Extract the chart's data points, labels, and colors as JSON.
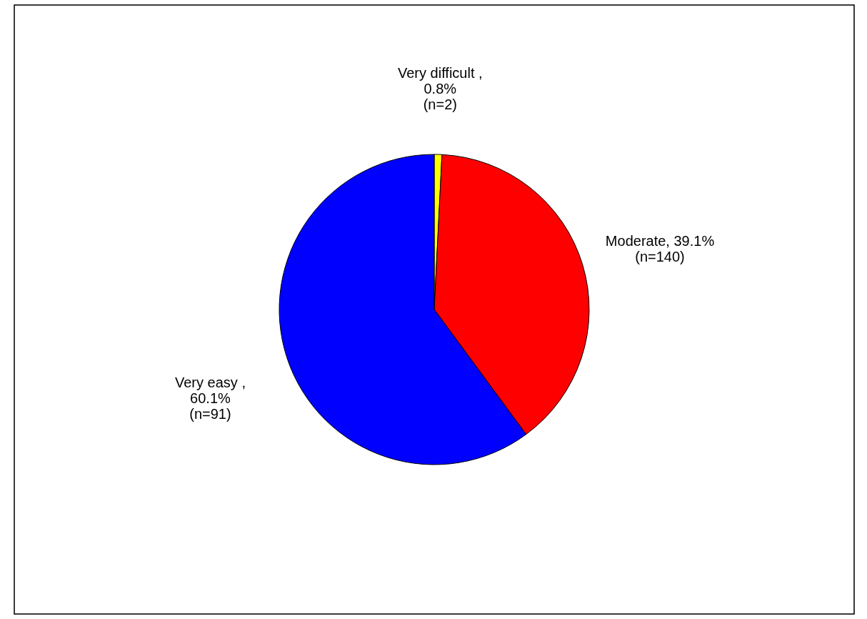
{
  "chart_data": {
    "type": "pie",
    "categories": [
      "Very difficult",
      "Moderate",
      "Very easy"
    ],
    "values": [
      0.8,
      39.1,
      60.1
    ],
    "value_labels": [
      ",\n0.8%\n(n=2)",
      "39.1%\n(n=140)",
      ",\n60.1%\n(n=91)"
    ],
    "colors": [
      "#ffff00",
      "#ff0000",
      "#0000ff"
    ],
    "legend": false
  }
}
